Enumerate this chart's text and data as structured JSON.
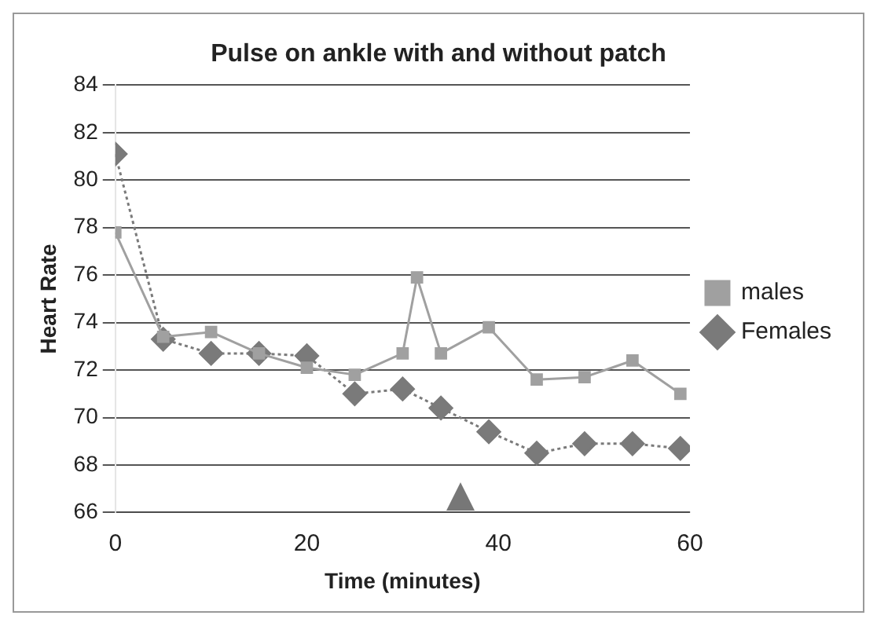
{
  "chart_data": {
    "type": "scatter",
    "title": "Pulse on ankle with and without patch",
    "xlabel": "Time (minutes)",
    "ylabel": "Heart Rate",
    "xlim": [
      0,
      60
    ],
    "xticks": [
      0,
      20,
      40,
      60
    ],
    "ylim": [
      66,
      84
    ],
    "yticks": [
      66,
      68,
      70,
      72,
      74,
      76,
      78,
      80,
      82,
      84
    ],
    "grid": "y",
    "legend": "right",
    "series": [
      {
        "name": "Females",
        "type": "line",
        "color": "#7a7a7a",
        "marker": "diamond",
        "line_style": "dotted",
        "x": [
          0,
          5,
          10,
          15,
          20,
          25,
          30,
          34,
          39,
          44,
          49,
          54,
          59
        ],
        "values": [
          81.1,
          73.3,
          72.7,
          72.7,
          72.6,
          71,
          71.2,
          70.4,
          69.4,
          68.5,
          68.9,
          68.9,
          68.7
        ]
      },
      {
        "name": "males",
        "type": "line",
        "color": "#a0a0a0",
        "marker": "square",
        "line_style": "solid",
        "x": [
          0,
          5,
          10,
          15,
          20,
          25,
          30,
          31.5,
          34,
          39,
          44,
          49,
          54,
          59
        ],
        "values": [
          77.8,
          73.4,
          73.6,
          72.7,
          72.1,
          71.8,
          72.7,
          75.9,
          72.7,
          73.8,
          71.6,
          71.7,
          72.4,
          71
        ]
      }
    ]
  }
}
